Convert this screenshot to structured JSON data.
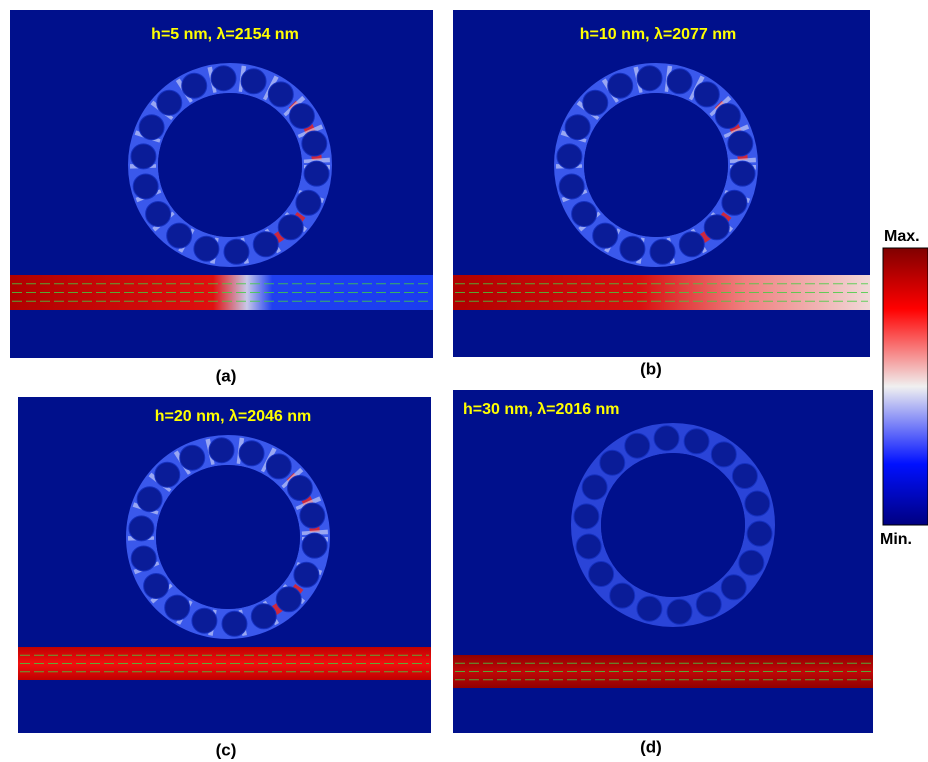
{
  "panels": [
    {
      "title": "h=5 nm,  λ=2154 nm",
      "caption": "(a)"
    },
    {
      "title": "h=10 nm,  λ=2077 nm",
      "caption": "(b)"
    },
    {
      "title": "h=20 nm,  λ=2046 nm",
      "caption": "(c)"
    },
    {
      "title": "h=30 nm,  λ=2016 nm",
      "caption": "(d)"
    }
  ],
  "colorbar": {
    "max_label": "Max.",
    "min_label": "Min."
  }
}
